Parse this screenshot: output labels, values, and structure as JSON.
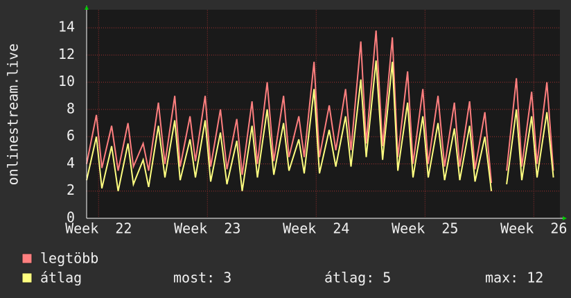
{
  "chart_data": {
    "type": "line",
    "y_label": "onlinestream.live",
    "x": [
      21.89,
      21.98,
      22.03,
      22.12,
      22.18,
      22.27,
      22.32,
      22.41,
      22.46,
      22.55,
      22.61,
      22.7,
      22.75,
      22.84,
      22.89,
      22.98,
      23.03,
      23.12,
      23.18,
      23.27,
      23.32,
      23.41,
      23.46,
      23.55,
      23.61,
      23.7,
      23.75,
      23.84,
      23.89,
      23.98,
      24.03,
      24.12,
      24.18,
      24.27,
      24.32,
      24.41,
      24.46,
      24.55,
      24.61,
      24.7,
      24.75,
      24.84,
      24.89,
      24.98,
      25.03,
      25.12,
      25.18,
      25.27,
      25.32,
      25.41,
      25.46,
      25.55,
      25.61,
      25.7,
      25.75,
      25.84,
      25.89,
      25.98,
      26.03,
      26.12,
      26.18
    ],
    "series": [
      {
        "name": "legtöbb",
        "color": "#ff7f7f",
        "values": [
          4.0,
          7.6,
          3.7,
          6.8,
          3.5,
          7.0,
          3.8,
          5.5,
          3.5,
          8.5,
          4.0,
          9.0,
          3.8,
          7.5,
          4.2,
          9.0,
          3.8,
          8.0,
          3.6,
          7.3,
          3.2,
          8.6,
          4.0,
          10.0,
          4.2,
          9.0,
          4.5,
          7.5,
          4.5,
          11.5,
          4.5,
          8.3,
          5.0,
          9.5,
          5.0,
          13.0,
          5.5,
          13.8,
          5.3,
          13.3,
          4.5,
          10.8,
          4.0,
          9.5,
          4.0,
          9.0,
          3.8,
          8.5,
          3.8,
          8.6,
          3.6,
          7.8,
          2.6,
          null,
          3.5,
          10.3,
          3.8,
          9.3,
          4.0,
          10.0,
          3.5
        ]
      },
      {
        "name": "átlag",
        "color": "#ffff80",
        "values": [
          2.8,
          6.0,
          2.2,
          5.3,
          2.0,
          5.5,
          2.5,
          4.3,
          2.3,
          6.8,
          3.0,
          7.2,
          2.8,
          5.8,
          3.0,
          7.2,
          2.7,
          6.3,
          2.5,
          5.7,
          2.0,
          6.8,
          3.0,
          8.0,
          3.2,
          7.0,
          3.5,
          5.8,
          3.3,
          9.5,
          3.3,
          6.5,
          3.8,
          7.5,
          3.8,
          10.2,
          4.5,
          11.6,
          4.3,
          11.5,
          3.5,
          8.5,
          3.0,
          7.5,
          3.0,
          7.0,
          2.8,
          6.6,
          2.8,
          6.8,
          2.7,
          6.0,
          2.0,
          null,
          2.5,
          8.0,
          2.8,
          7.5,
          3.0,
          7.8,
          3.0
        ]
      }
    ],
    "stats": [
      "most: 3",
      "átlag: 5",
      "max: 12"
    ],
    "xlim": [
      21.89,
      26.24
    ],
    "xticks": [
      {
        "value": 22,
        "label": "Week  22"
      },
      {
        "value": 23,
        "label": "Week  23"
      },
      {
        "value": 24,
        "label": "Week  24"
      },
      {
        "value": 25,
        "label": "Week  25"
      },
      {
        "value": 26,
        "label": "Week  26"
      }
    ],
    "ylim": [
      0,
      15
    ],
    "yticks": [
      0,
      2,
      4,
      6,
      8,
      10,
      12,
      14
    ],
    "grid": true
  }
}
